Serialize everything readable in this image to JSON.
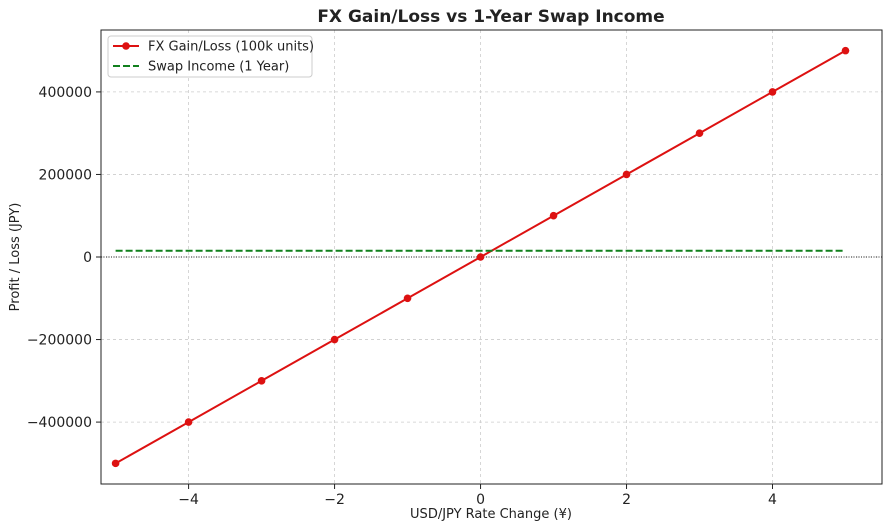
{
  "colors": {
    "fx_line": "#dd1111",
    "swap_line": "#11801d",
    "grid": "#cccccc",
    "axis": "#222222",
    "zero_line": "#222222"
  },
  "chart_data": {
    "type": "line",
    "title": "FX Gain/Loss vs 1-Year Swap Income",
    "xlabel": "USD/JPY Rate Change (¥)",
    "ylabel": "Profit / Loss (JPY)",
    "xlim": [
      -5.2,
      5.5
    ],
    "ylim": [
      -550000,
      550000
    ],
    "xticks": [
      -4,
      -2,
      0,
      2,
      4
    ],
    "xtick_labels": [
      "−4",
      "−2",
      "0",
      "2",
      "4"
    ],
    "yticks": [
      -400000,
      -200000,
      0,
      200000,
      400000
    ],
    "ytick_labels": [
      "−400000",
      "−200000",
      "0",
      "200000",
      "400000"
    ],
    "grid": true,
    "legend_position": "top-left",
    "series": [
      {
        "name": "FX Gain/Loss (100k units)",
        "style": "solid-line-with-markers",
        "x": [
          -5,
          -4,
          -3,
          -2,
          -1,
          0,
          1,
          2,
          3,
          4,
          5
        ],
        "y": [
          -500000,
          -400000,
          -300000,
          -200000,
          -100000,
          0,
          100000,
          200000,
          300000,
          400000,
          500000
        ]
      },
      {
        "name": "Swap Income (1 Year)",
        "style": "dashed-line",
        "x": [
          -5,
          5
        ],
        "y": [
          15000,
          15000
        ]
      }
    ],
    "reference_lines": [
      {
        "axis": "y",
        "value": 0,
        "style": "dotted"
      }
    ]
  }
}
